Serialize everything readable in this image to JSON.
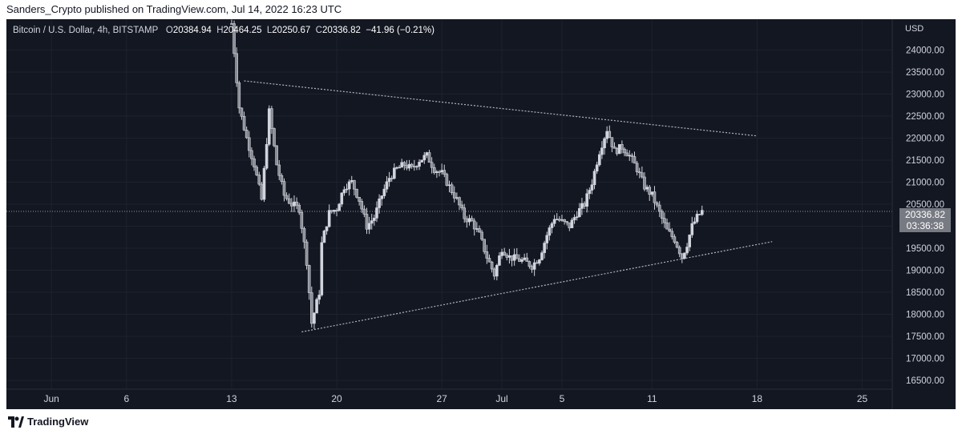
{
  "header": {
    "published_text": "Sanders_Crypto published on TradingView.com, Jul 14, 2022 16:23 UTC"
  },
  "legend": {
    "symbol": "Bitcoin / U.S. Dollar, 4h, BITSTAMP",
    "o_label": "O",
    "o_value": "20384.94",
    "h_label": "H",
    "h_value": "20464.25",
    "l_label": "L",
    "l_value": "20250.67",
    "c_label": "C",
    "c_value": "20336.82",
    "change": "−41.96 (−0.21%)"
  },
  "price_axis": {
    "currency": "USD",
    "ticks": [
      "24000.00",
      "23500.00",
      "23000.00",
      "22500.00",
      "22000.00",
      "21500.00",
      "21000.00",
      "20500.00",
      "20000.00",
      "19500.00",
      "19000.00",
      "18500.00",
      "18000.00",
      "17500.00",
      "17000.00",
      "16500.00"
    ]
  },
  "last_price": {
    "price": "20336.82",
    "countdown": "03:36:38"
  },
  "footer": {
    "brand": "TradingView"
  },
  "colors": {
    "background": "#131722",
    "candle": "#d1d4dc",
    "grid": "#1e222d",
    "text": "#d1d4dc",
    "tag": "#777a82"
  },
  "chart_data": {
    "type": "candlestick",
    "title": "Bitcoin / U.S. Dollar, 4h, BITSTAMP",
    "ylabel": "USD",
    "ylim": [
      16300,
      24700
    ],
    "xlim": [
      "2022-05-29",
      "2022-07-27"
    ],
    "x_ticks": [
      {
        "label": "Jun",
        "date": "2022-06-01"
      },
      {
        "label": "6",
        "date": "2022-06-06"
      },
      {
        "label": "13",
        "date": "2022-06-13"
      },
      {
        "label": "20",
        "date": "2022-06-20"
      },
      {
        "label": "27",
        "date": "2022-06-27"
      },
      {
        "label": "Jul",
        "date": "2022-07-01"
      },
      {
        "label": "5",
        "date": "2022-07-05"
      },
      {
        "label": "11",
        "date": "2022-07-11"
      },
      {
        "label": "18",
        "date": "2022-07-18"
      },
      {
        "label": "25",
        "date": "2022-07-25"
      }
    ],
    "price_path": [
      [
        "2022-06-13",
        24600
      ],
      [
        "2022-06-13T12",
        22700
      ],
      [
        "2022-06-14",
        22000
      ],
      [
        "2022-06-14T12",
        21400
      ],
      [
        "2022-06-15",
        20600
      ],
      [
        "2022-06-15T12",
        22600
      ],
      [
        "2022-06-16",
        21400
      ],
      [
        "2022-06-16T12",
        20700
      ],
      [
        "2022-06-17",
        20500
      ],
      [
        "2022-06-17T12",
        20400
      ],
      [
        "2022-06-18",
        19200
      ],
      [
        "2022-06-18T08",
        17800
      ],
      [
        "2022-06-18T20",
        18500
      ],
      [
        "2022-06-19",
        19600
      ],
      [
        "2022-06-19T12",
        20300
      ],
      [
        "2022-06-20",
        20400
      ],
      [
        "2022-06-20T12",
        20900
      ],
      [
        "2022-06-21",
        21000
      ],
      [
        "2022-06-21T12",
        20600
      ],
      [
        "2022-06-22",
        20000
      ],
      [
        "2022-06-22T12",
        20200
      ],
      [
        "2022-06-23",
        20700
      ],
      [
        "2022-06-23T12",
        21100
      ],
      [
        "2022-06-24",
        21300
      ],
      [
        "2022-06-24T12",
        21400
      ],
      [
        "2022-06-25",
        21300
      ],
      [
        "2022-06-25T12",
        21500
      ],
      [
        "2022-06-26",
        21600
      ],
      [
        "2022-06-26T12",
        21300
      ],
      [
        "2022-06-27",
        21200
      ],
      [
        "2022-06-27T12",
        20900
      ],
      [
        "2022-06-28",
        20600
      ],
      [
        "2022-06-28T12",
        20200
      ],
      [
        "2022-06-29",
        20100
      ],
      [
        "2022-06-29T12",
        19800
      ],
      [
        "2022-06-30",
        19300
      ],
      [
        "2022-06-30T12",
        18900
      ],
      [
        "2022-07-01",
        19500
      ],
      [
        "2022-07-01T12",
        19300
      ],
      [
        "2022-07-02",
        19250
      ],
      [
        "2022-07-02T12",
        19200
      ],
      [
        "2022-07-03",
        19100
      ],
      [
        "2022-07-03T12",
        19300
      ],
      [
        "2022-07-04",
        19800
      ],
      [
        "2022-07-04T12",
        20200
      ],
      [
        "2022-07-05",
        20100
      ],
      [
        "2022-07-05T12",
        20000
      ],
      [
        "2022-07-06",
        20300
      ],
      [
        "2022-07-06T12",
        20500
      ],
      [
        "2022-07-07",
        21000
      ],
      [
        "2022-07-07T12",
        21700
      ],
      [
        "2022-07-08",
        22200
      ],
      [
        "2022-07-08T12",
        21700
      ],
      [
        "2022-07-09",
        21800
      ],
      [
        "2022-07-09T12",
        21600
      ],
      [
        "2022-07-10",
        21300
      ],
      [
        "2022-07-10T12",
        20900
      ],
      [
        "2022-07-11",
        20700
      ],
      [
        "2022-07-11T12",
        20300
      ],
      [
        "2022-07-12",
        19900
      ],
      [
        "2022-07-12T12",
        19700
      ],
      [
        "2022-07-13",
        19300
      ],
      [
        "2022-07-13T08",
        19600
      ],
      [
        "2022-07-13T16",
        20000
      ],
      [
        "2022-07-14",
        20200
      ],
      [
        "2022-07-14T08",
        20336.82
      ]
    ],
    "trendlines": [
      {
        "name": "upper",
        "from": [
          "2022-06-13T20",
          23300
        ],
        "to": [
          "2022-07-18",
          22050
        ]
      },
      {
        "name": "lower",
        "from": [
          "2022-06-17T16",
          17600
        ],
        "to": [
          "2022-07-19",
          19650
        ]
      }
    ],
    "last_price_line": 20336.82,
    "grid": true
  }
}
